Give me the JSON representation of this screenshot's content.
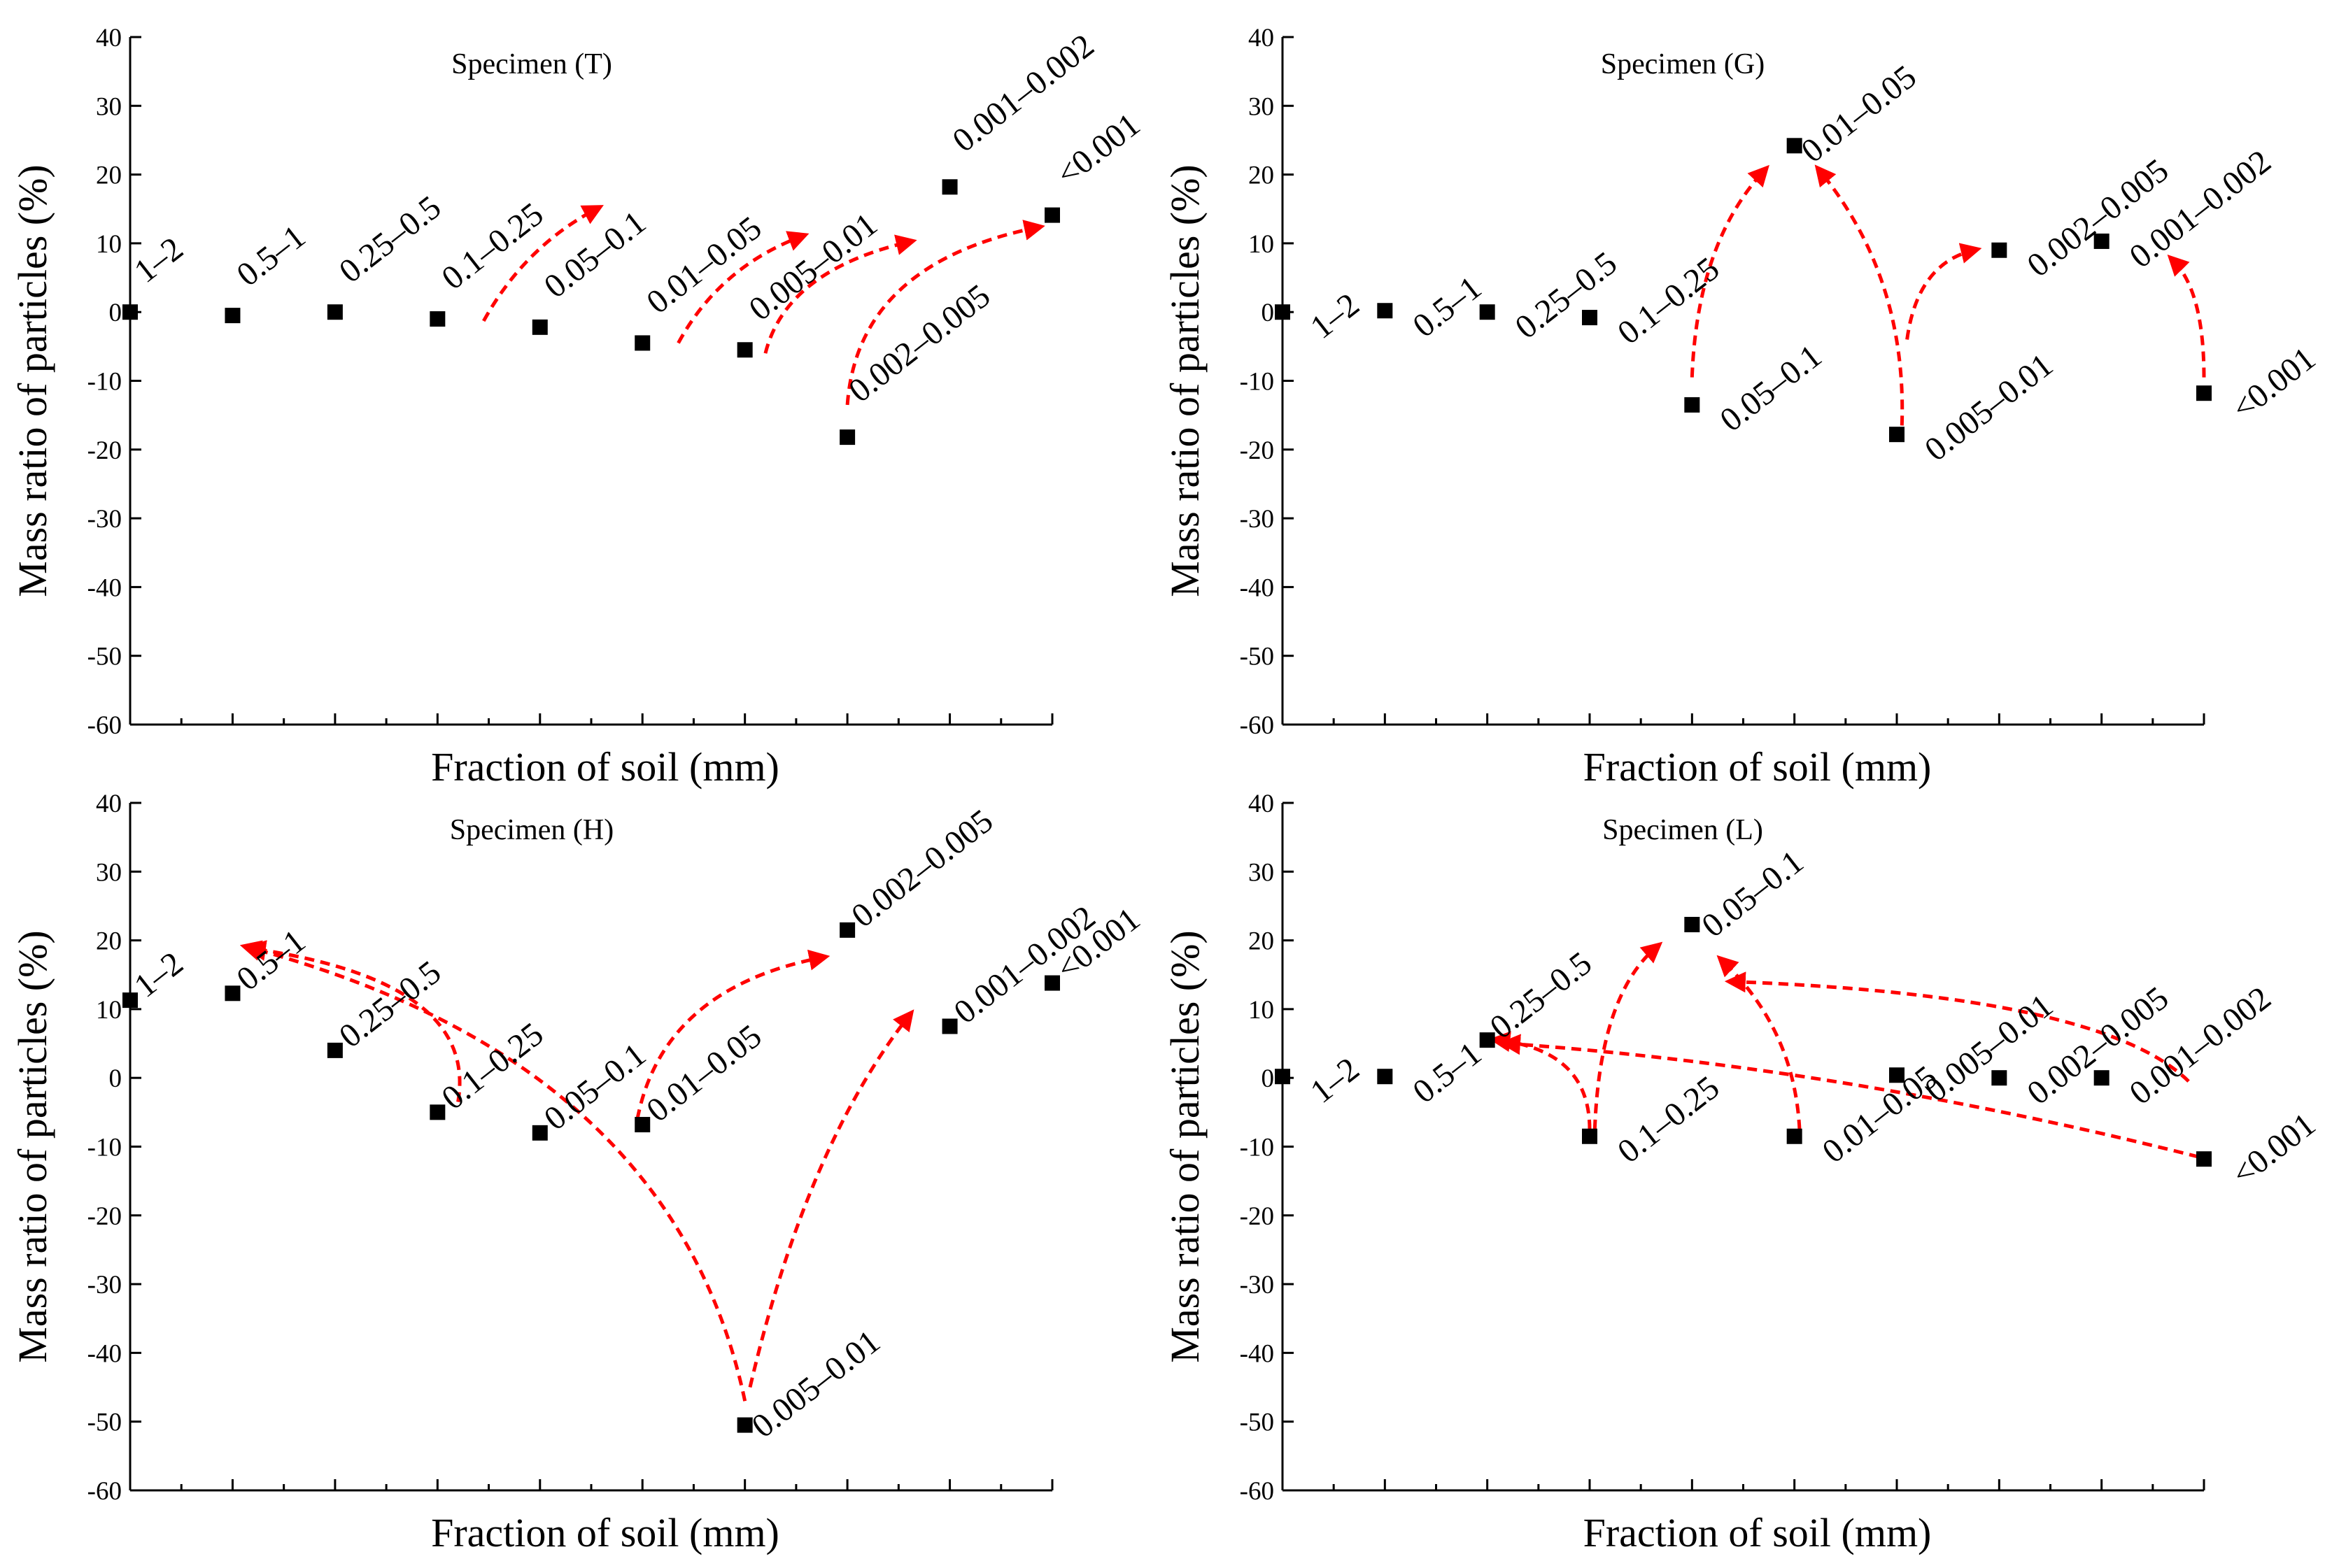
{
  "chart_data": [
    {
      "type": "scatter",
      "title": "Specimen (T)",
      "xlabel": "Fraction of soil (mm)",
      "ylabel": "Mass ratio of  particles (%)",
      "ylim": [
        -60,
        40
      ],
      "yticks": [
        40,
        30,
        20,
        10,
        0,
        -10,
        -20,
        -30,
        -40,
        -50,
        -60
      ],
      "categories": [
        "1–2",
        "0.5–1",
        "0.25–0.5",
        "0.1–0.25",
        "0.05–0.1",
        "0.01–0.05",
        "0.005–0.01",
        "0.002–0.005",
        "0.001–0.002",
        "<0.001"
      ],
      "values": [
        0.0,
        -0.5,
        0.0,
        -1.0,
        -2.2,
        -4.5,
        -5.5,
        -18.2,
        18.2,
        14.1
      ],
      "annotations": [
        {
          "type": "arrow",
          "note": "red dashed trend arrow",
          "from": [
            3.45,
            -1.3
          ],
          "to": [
            4.55,
            15.0
          ],
          "ctrl": [
            3.85,
            9.5
          ]
        },
        {
          "type": "arrow",
          "note": "red dashed trend arrow",
          "from": [
            5.35,
            -4.5
          ],
          "to": [
            6.55,
            11.0
          ],
          "ctrl": [
            5.75,
            6.5
          ]
        },
        {
          "type": "arrow",
          "note": "red dashed trend arrow",
          "from": [
            6.2,
            -6.0
          ],
          "to": [
            7.6,
            10.2
          ],
          "ctrl": [
            6.4,
            6.0
          ]
        },
        {
          "type": "arrow",
          "note": "red dashed trend arrow",
          "from": [
            7.0,
            -13.5
          ],
          "to": [
            8.85,
            12.3
          ],
          "ctrl": [
            7.1,
            7.0
          ]
        }
      ]
    },
    {
      "type": "scatter",
      "title": "Specimen (G)",
      "xlabel": "Fraction of soil (mm)",
      "ylabel": "Mass ratio of  particles (%)",
      "ylim": [
        -60,
        40
      ],
      "yticks": [
        40,
        30,
        20,
        10,
        0,
        -10,
        -20,
        -30,
        -40,
        -50,
        -60
      ],
      "categories": [
        "1–2",
        "0.5–1",
        "0.25–0.5",
        "0.1–0.25",
        "0.05–0.1",
        "0.01–0.05",
        "0.005–0.01",
        "0.002–0.005",
        "0.001–0.002",
        "<0.001"
      ],
      "values": [
        0.0,
        0.2,
        0.0,
        -0.8,
        -13.5,
        24.2,
        -17.8,
        9.0,
        10.3,
        -11.8
      ],
      "annotations": [
        {
          "type": "arrow",
          "note": "red dashed trend arrow",
          "from": [
            4.0,
            -9.5
          ],
          "to": [
            4.7,
            20.5
          ],
          "ctrl": [
            4.05,
            10.0
          ]
        },
        {
          "type": "arrow",
          "note": "red dashed trend arrow",
          "from": [
            6.05,
            -16.5
          ],
          "to": [
            5.25,
            20.5
          ],
          "ctrl": [
            6.1,
            5.0
          ]
        },
        {
          "type": "arrow",
          "note": "red dashed trend arrow",
          "from": [
            6.1,
            -4.0
          ],
          "to": [
            6.75,
            9.0
          ],
          "ctrl": [
            6.2,
            7.0
          ]
        },
        {
          "type": "arrow",
          "note": "red dashed trend arrow",
          "from": [
            9.0,
            -9.5
          ],
          "to": [
            8.7,
            7.5
          ],
          "ctrl": [
            9.0,
            3.0
          ]
        }
      ]
    },
    {
      "type": "scatter",
      "title": "Specimen (H)",
      "xlabel": "Fraction of soil (mm)",
      "ylabel": "Mass ratio of  particles (%)",
      "ylim": [
        -60,
        40
      ],
      "yticks": [
        40,
        30,
        20,
        10,
        0,
        -10,
        -20,
        -30,
        -40,
        -50,
        -60
      ],
      "categories": [
        "1–2",
        "0.5–1",
        "0.25–0.5",
        "0.1–0.25",
        "0.05–0.1",
        "0.01–0.05",
        "0.005–0.01",
        "0.002–0.005",
        "0.001–0.002",
        "<0.001"
      ],
      "values": [
        11.3,
        12.3,
        4.0,
        -5.0,
        -8.0,
        -6.8,
        -50.5,
        21.5,
        7.5,
        13.8
      ],
      "annotations": [
        {
          "type": "arrow",
          "note": "red dashed trend arrow",
          "from": [
            3.2,
            -3.5
          ],
          "to": [
            1.2,
            18.8
          ],
          "ctrl": [
            3.4,
            14.0
          ]
        },
        {
          "type": "arrow",
          "note": "red dashed trend arrow",
          "from": [
            6.0,
            -47.0
          ],
          "to": [
            1.15,
            19.0
          ],
          "ctrl": [
            5.3,
            2.5
          ]
        },
        {
          "type": "arrow",
          "note": "red dashed trend arrow",
          "from": [
            4.95,
            -6.0
          ],
          "to": [
            6.75,
            17.5
          ],
          "ctrl": [
            5.2,
            13.0
          ]
        },
        {
          "type": "arrow",
          "note": "red dashed trend arrow",
          "from": [
            6.05,
            -45.0
          ],
          "to": [
            7.6,
            9.0
          ],
          "ctrl": [
            6.6,
            -10.0
          ]
        }
      ]
    },
    {
      "type": "scatter",
      "title": "Specimen (L)",
      "xlabel": "Fraction of soil (mm)",
      "ylabel": "Mass ratio of  particles (%)",
      "ylim": [
        -60,
        40
      ],
      "yticks": [
        40,
        30,
        20,
        10,
        0,
        -10,
        -20,
        -30,
        -40,
        -50,
        -60
      ],
      "categories": [
        "1–2",
        "0.5–1",
        "0.25–0.5",
        "0.1–0.25",
        "0.05–0.1",
        "0.01–0.05",
        "0.005–0.01",
        "0.002–0.005",
        "0.001–0.002",
        "<0.001"
      ],
      "values": [
        0.2,
        0.2,
        5.5,
        -8.5,
        22.3,
        -8.5,
        0.4,
        0.0,
        0.0,
        -11.8
      ],
      "annotations": [
        {
          "type": "arrow",
          "note": "red dashed trend arrow",
          "from": [
            3.0,
            -7.5
          ],
          "to": [
            2.1,
            5.5
          ],
          "ctrl": [
            3.0,
            4.0
          ]
        },
        {
          "type": "arrow",
          "note": "red dashed trend arrow",
          "from": [
            3.05,
            -7.5
          ],
          "to": [
            3.65,
            19.0
          ],
          "ctrl": [
            3.1,
            12.0
          ]
        },
        {
          "type": "arrow",
          "note": "red dashed trend arrow",
          "from": [
            5.05,
            -7.5
          ],
          "to": [
            4.3,
            17.0
          ],
          "ctrl": [
            5.0,
            7.0
          ]
        },
        {
          "type": "arrow",
          "note": "red dashed trend arrow",
          "from": [
            8.95,
            -11.5
          ],
          "to": [
            2.2,
            5.0
          ],
          "ctrl": [
            5.5,
            1.5
          ]
        },
        {
          "type": "arrow",
          "note": "red dashed trend arrow",
          "from": [
            8.85,
            -0.5
          ],
          "to": [
            4.4,
            14.0
          ],
          "ctrl": [
            8.0,
            12.0
          ]
        }
      ]
    }
  ]
}
